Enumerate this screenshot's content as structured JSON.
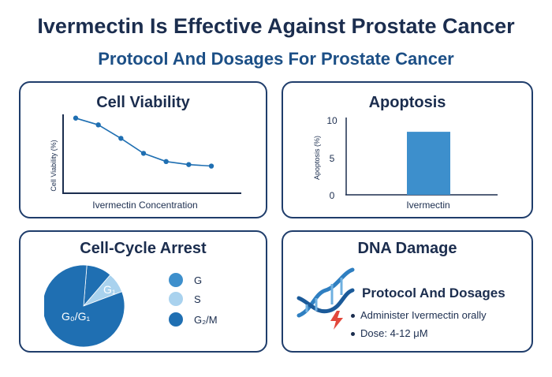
{
  "header": {
    "title": "Ivermectin Is Effective Against Prostate Cancer",
    "subtitle": "Protocol And Dosages For Prostate Cancer"
  },
  "colors": {
    "navy": "#1b2d4e",
    "blue": "#1f6fb2",
    "mid_blue": "#3d8fcc",
    "light_blue": "#a9d2ee",
    "accent_red": "#e2473b"
  },
  "chart_data": [
    {
      "type": "line",
      "title": "Cell Viability",
      "xlabel": "Ivermectin Concentration",
      "ylabel": "Cell Viability (%)",
      "grid": false,
      "series": [
        {
          "values": [
            95,
            86,
            68,
            48,
            37,
            33,
            31
          ]
        }
      ]
    },
    {
      "type": "bar",
      "title": "Apoptosis",
      "xlabel": "Ivermectin",
      "ylabel": "Apoptosis (%)",
      "categories": [
        "Ivermectin"
      ],
      "values": [
        8.5
      ],
      "ylim": [
        0,
        10
      ],
      "yticks": [
        "10",
        "5",
        "0"
      ]
    },
    {
      "type": "pie",
      "title": "Cell-Cycle Arrest",
      "slices": [
        {
          "label": "G₀/G₁",
          "value": 82,
          "color": "#1f6fb2"
        },
        {
          "label": "S",
          "value": 8,
          "color": "#a9d2ee"
        },
        {
          "label": "G₂/M",
          "value": 10,
          "color": "#1f6fb2"
        }
      ],
      "slice_labels": [
        "G₁",
        "G₀/G₁"
      ],
      "legend": [
        {
          "label": "G",
          "color": "#3d8fcc"
        },
        {
          "label": "S",
          "color": "#a9d2ee"
        },
        {
          "label": "G₂/M",
          "color": "#1f6fb2"
        }
      ],
      "legend_position": "right"
    }
  ],
  "dna_panel": {
    "title": "DNA Damage",
    "icons": [
      "dna-helix-icon",
      "lightning-bolt-icon"
    ],
    "protocol_title": "Protocol And Dosages",
    "bullets": [
      "Administer Ivermectin orally",
      "Dose: 4-12 μM"
    ]
  }
}
